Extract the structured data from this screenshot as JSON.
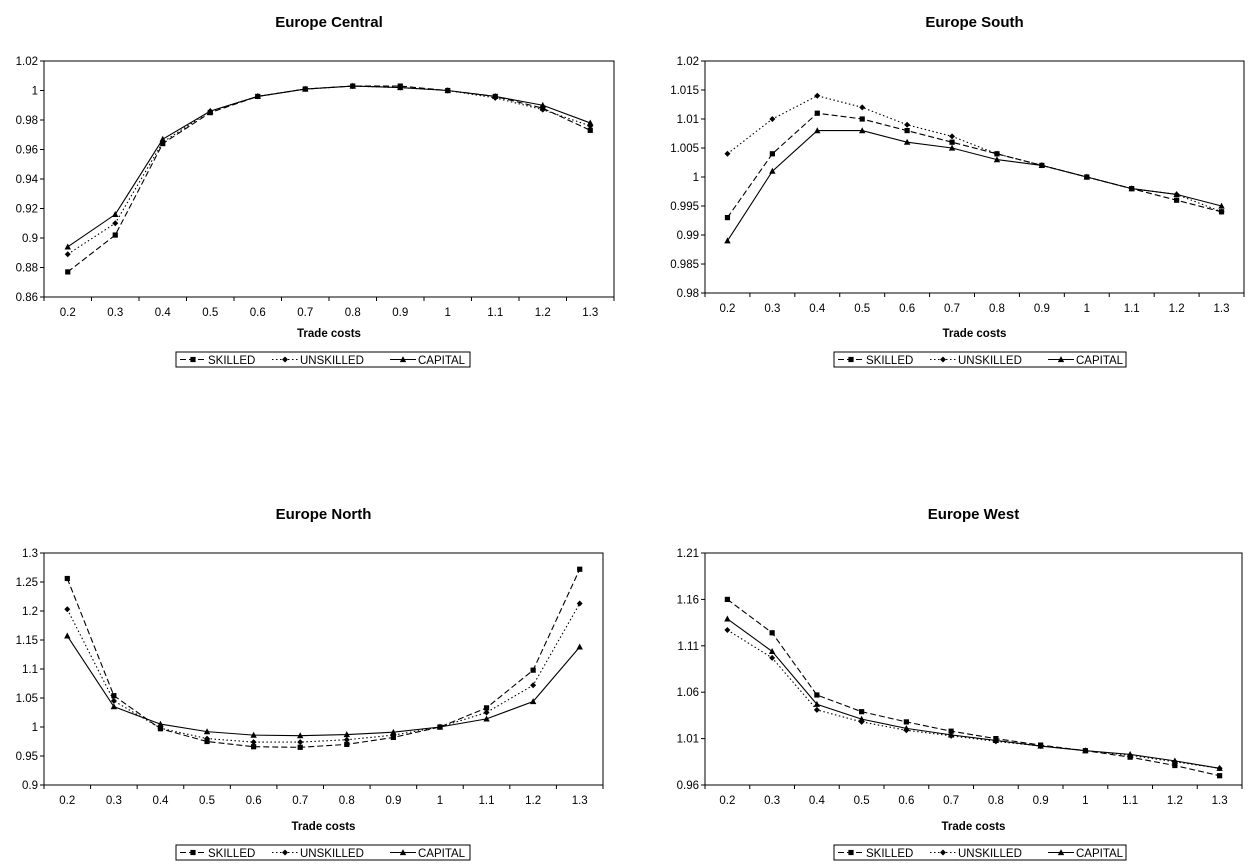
{
  "chart_data": [
    {
      "type": "line",
      "title": "Europe Central",
      "xlabel": "Trade costs",
      "ylabel": "",
      "categories": [
        "0.2",
        "0.3",
        "0.4",
        "0.5",
        "0.6",
        "0.7",
        "0.8",
        "0.9",
        "1",
        "1.1",
        "1.2",
        "1.3"
      ],
      "ylim": [
        0.86,
        1.02
      ],
      "yticks": [
        "0.86",
        "0.88",
        "0.9",
        "0.92",
        "0.94",
        "0.96",
        "0.98",
        "1",
        "1.02"
      ],
      "legend_position": "bottom",
      "grid": false,
      "series": [
        {
          "name": "SKILLED",
          "marker": "square",
          "dash": "dashed",
          "values": [
            0.877,
            0.902,
            0.964,
            0.985,
            0.996,
            1.001,
            1.003,
            1.003,
            1.0,
            0.996,
            0.988,
            0.973
          ]
        },
        {
          "name": "UNSKILLED",
          "marker": "diamond",
          "dash": "dotted",
          "values": [
            0.889,
            0.91,
            0.965,
            0.986,
            0.996,
            1.001,
            1.003,
            1.002,
            1.0,
            0.995,
            0.987,
            0.976
          ]
        },
        {
          "name": "CAPITAL",
          "marker": "triangle",
          "dash": "solid",
          "values": [
            0.894,
            0.916,
            0.967,
            0.986,
            0.996,
            1.001,
            1.003,
            1.002,
            1.0,
            0.996,
            0.99,
            0.978
          ]
        }
      ]
    },
    {
      "type": "line",
      "title": "Europe South",
      "xlabel": "Trade costs",
      "ylabel": "",
      "categories": [
        "0.2",
        "0.3",
        "0.4",
        "0.5",
        "0.6",
        "0.7",
        "0.8",
        "0.9",
        "1",
        "1.1",
        "1.2",
        "1.3"
      ],
      "ylim": [
        0.98,
        1.02
      ],
      "yticks": [
        "0.98",
        "0.985",
        "0.99",
        "0.995",
        "1",
        "1.005",
        "1.01",
        "1.015",
        "1.02"
      ],
      "legend_position": "bottom",
      "grid": false,
      "series": [
        {
          "name": "SKILLED",
          "marker": "square",
          "dash": "dashed",
          "values": [
            0.993,
            1.004,
            1.011,
            1.01,
            1.008,
            1.006,
            1.004,
            1.002,
            1.0,
            0.998,
            0.996,
            0.994
          ]
        },
        {
          "name": "UNSKILLED",
          "marker": "diamond",
          "dash": "dotted",
          "values": [
            1.004,
            1.01,
            1.014,
            1.012,
            1.009,
            1.007,
            1.004,
            1.002,
            1.0,
            0.998,
            0.997,
            0.994
          ]
        },
        {
          "name": "CAPITAL",
          "marker": "triangle",
          "dash": "solid",
          "values": [
            0.989,
            1.001,
            1.008,
            1.008,
            1.006,
            1.005,
            1.003,
            1.002,
            1.0,
            0.998,
            0.997,
            0.995
          ]
        }
      ]
    },
    {
      "type": "line",
      "title": "Europe North",
      "xlabel": "Trade costs",
      "ylabel": "",
      "categories": [
        "0.2",
        "0.3",
        "0.4",
        "0.5",
        "0.6",
        "0.7",
        "0.8",
        "0.9",
        "1",
        "1.1",
        "1.2",
        "1.3"
      ],
      "ylim": [
        0.9,
        1.3
      ],
      "yticks": [
        "0.9",
        "0.95",
        "1",
        "1.05",
        "1.1",
        "1.15",
        "1.2",
        "1.25",
        "1.3"
      ],
      "legend_position": "bottom",
      "grid": false,
      "series": [
        {
          "name": "SKILLED",
          "marker": "square",
          "dash": "dashed",
          "values": [
            1.256,
            1.054,
            0.997,
            0.975,
            0.966,
            0.965,
            0.97,
            0.982,
            1.0,
            1.033,
            1.098,
            1.272
          ]
        },
        {
          "name": "UNSKILLED",
          "marker": "diamond",
          "dash": "dotted",
          "values": [
            1.203,
            1.045,
            0.998,
            0.98,
            0.974,
            0.974,
            0.978,
            0.986,
            1.0,
            1.025,
            1.072,
            1.213
          ]
        },
        {
          "name": "CAPITAL",
          "marker": "triangle",
          "dash": "solid",
          "values": [
            1.157,
            1.035,
            1.005,
            0.992,
            0.986,
            0.985,
            0.987,
            0.991,
            1.0,
            1.014,
            1.044,
            1.138
          ]
        }
      ]
    },
    {
      "type": "line",
      "title": "Europe West",
      "xlabel": "Trade costs",
      "ylabel": "",
      "categories": [
        "0.2",
        "0.3",
        "0.4",
        "0.5",
        "0.6",
        "0.7",
        "0.8",
        "0.9",
        "1",
        "1.1",
        "1.2",
        "1.3"
      ],
      "ylim": [
        0.96,
        1.21
      ],
      "yticks": [
        "0.96",
        "1.01",
        "1.06",
        "1.11",
        "1.16",
        "1.21"
      ],
      "legend_position": "bottom",
      "grid": false,
      "series": [
        {
          "name": "SKILLED",
          "marker": "square",
          "dash": "dashed",
          "values": [
            1.16,
            1.124,
            1.057,
            1.039,
            1.028,
            1.018,
            1.01,
            1.003,
            0.997,
            0.99,
            0.981,
            0.97
          ]
        },
        {
          "name": "UNSKILLED",
          "marker": "diamond",
          "dash": "dotted",
          "values": [
            1.127,
            1.097,
            1.041,
            1.028,
            1.019,
            1.013,
            1.007,
            1.002,
            0.997,
            0.992,
            0.985,
            0.978
          ]
        },
        {
          "name": "CAPITAL",
          "marker": "triangle",
          "dash": "solid",
          "values": [
            1.139,
            1.104,
            1.047,
            1.031,
            1.021,
            1.014,
            1.008,
            1.002,
            0.997,
            0.993,
            0.986,
            0.978
          ]
        }
      ]
    }
  ]
}
